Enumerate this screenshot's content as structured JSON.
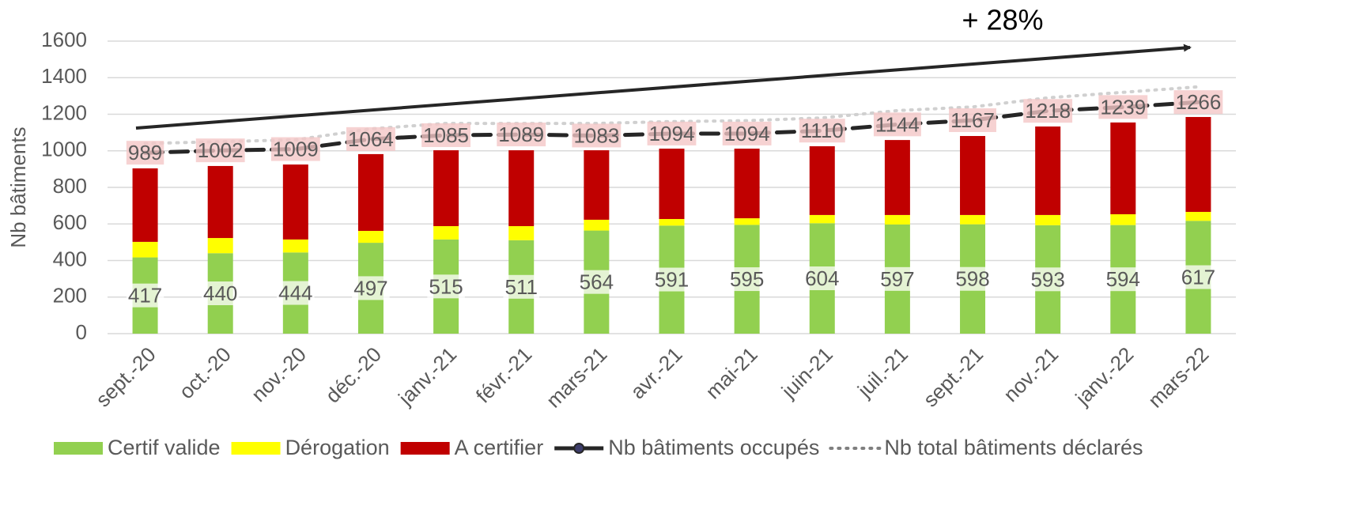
{
  "chart_data": {
    "type": "bar",
    "stacked": true,
    "annotation": "+ 28%",
    "y_label": "Nb bâtiments",
    "categories": [
      "sept.-20",
      "oct.-20",
      "nov.-20",
      "déc.-20",
      "janv.-21",
      "févr.-21",
      "mars-21",
      "avr.-21",
      "mai-21",
      "juin-21",
      "juil.-21",
      "sept.-21",
      "nov.-21",
      "janv.-22",
      "mars-22"
    ],
    "series": [
      {
        "name": "Certif valide",
        "type": "bar",
        "color": "#92d050",
        "show_labels": true,
        "values": [
          417,
          440,
          444,
          497,
          515,
          511,
          564,
          591,
          595,
          604,
          597,
          598,
          593,
          594,
          617
        ]
      },
      {
        "name": "Dérogation",
        "type": "bar",
        "color": "#ffff00",
        "show_labels": false,
        "values": [
          85,
          83,
          71,
          65,
          73,
          77,
          59,
          36,
          36,
          45,
          52,
          51,
          56,
          59,
          49
        ]
      },
      {
        "name": "A certifier",
        "type": "bar",
        "color": "#c00000",
        "show_labels": false,
        "values": [
          402,
          394,
          410,
          420,
          415,
          415,
          380,
          385,
          381,
          376,
          410,
          432,
          484,
          502,
          519
        ]
      },
      {
        "name": "Nb bâtiments occupés",
        "type": "line",
        "color": "#262626",
        "show_labels": true,
        "values": [
          989,
          1002,
          1009,
          1064,
          1085,
          1089,
          1083,
          1094,
          1094,
          1110,
          1144,
          1167,
          1218,
          1239,
          1266
        ]
      },
      {
        "name": "Nb total bâtiments déclarés",
        "type": "dotted",
        "color": "#d0d0d0",
        "show_labels": false,
        "values": [
          1040,
          1050,
          1060,
          1120,
          1150,
          1150,
          1150,
          1160,
          1165,
          1180,
          1220,
          1240,
          1290,
          1320,
          1350
        ]
      }
    ],
    "ylim": [
      0,
      1600
    ],
    "yticks": [
      0,
      200,
      400,
      600,
      800,
      1000,
      1200,
      1400,
      1600
    ],
    "grid": true,
    "legend": "bottom"
  }
}
